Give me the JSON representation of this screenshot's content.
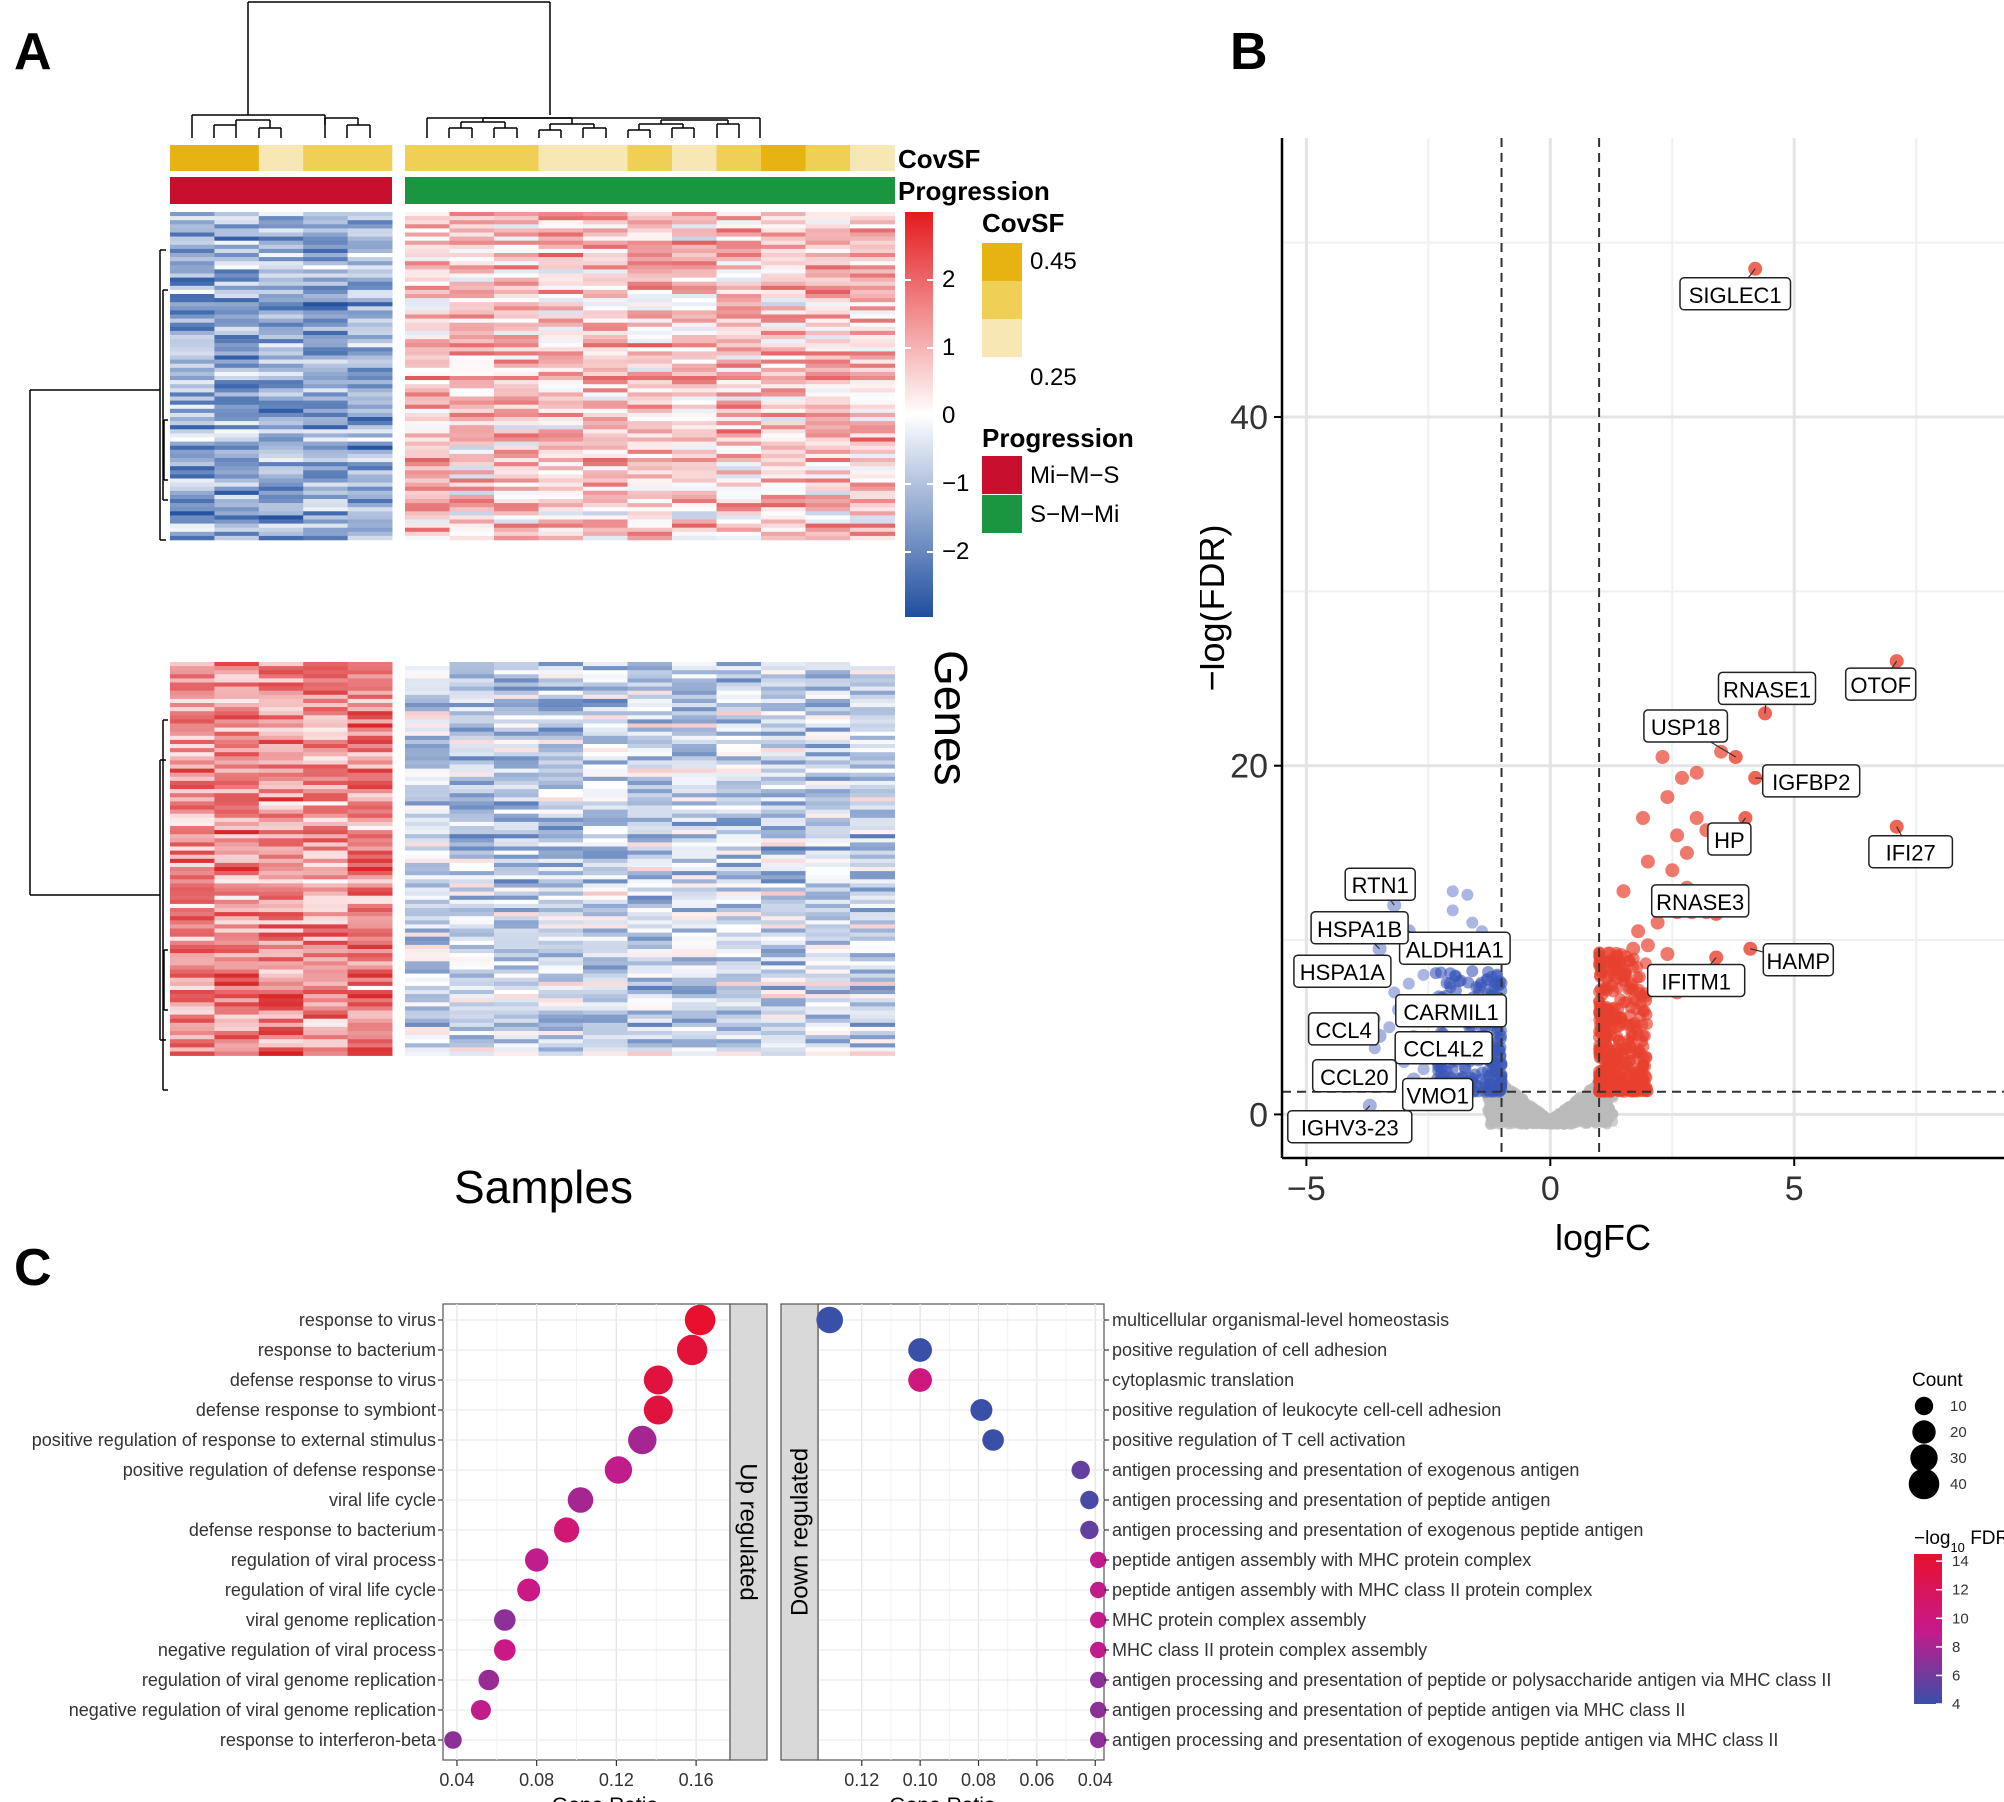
{
  "panels": {
    "a": "A",
    "b": "B",
    "c": "C"
  },
  "heatmap": {
    "x_label": "Samples",
    "y_label": "Genes",
    "annotation_rows": [
      "CovSF",
      "Progression"
    ],
    "color_scale_ticks": [
      "2",
      "1",
      "0",
      "−1",
      "−2"
    ],
    "covsf_legend": {
      "title": "CovSF",
      "high": "0.45",
      "low": "0.25"
    },
    "progression_legend": {
      "title": "Progression",
      "items": [
        {
          "label": "Mi−M−S",
          "color": "#c8102e"
        },
        {
          "label": "S−M−Mi",
          "color": "#1a9641"
        }
      ]
    },
    "colors": {
      "high": "#d7191c",
      "mid": "#ffffff",
      "low": "#1f4e9f",
      "covsf_high": "#e6b312",
      "covsf_low": "#f6e7b4"
    }
  },
  "chart_data": [
    {
      "type": "scatter",
      "panel": "B",
      "title": "",
      "xlabel": "logFC",
      "ylabel": "−log(FDR)",
      "xlim": [
        -5.5,
        9.3
      ],
      "ylim": [
        -2.5,
        56
      ],
      "x_ticks": [
        -5,
        0,
        5
      ],
      "x_tick_labels": [
        "−5",
        "0",
        "5"
      ],
      "y_ticks": [
        0,
        20,
        40
      ],
      "y_tick_labels": [
        "0",
        "20",
        "40"
      ],
      "thresholds": {
        "logFC": [
          -1,
          1
        ],
        "neg_log_fdr": 1.3
      },
      "colors": {
        "up": "#e8402e",
        "down": "#3a57b8",
        "ns": "#bbbbbb"
      },
      "labeled_genes": [
        {
          "gene": "SIGLEC1",
          "x": 4.2,
          "y": 48.5,
          "dir": "up"
        },
        {
          "gene": "OTOF",
          "x": 7.1,
          "y": 26.0,
          "dir": "up"
        },
        {
          "gene": "RNASE1",
          "x": 4.4,
          "y": 23.0,
          "dir": "up"
        },
        {
          "gene": "USP18",
          "x": 3.8,
          "y": 20.5,
          "dir": "up"
        },
        {
          "gene": "IGFBP2",
          "x": 4.2,
          "y": 19.3,
          "dir": "up"
        },
        {
          "gene": "HP",
          "x": 4.0,
          "y": 17.0,
          "dir": "up"
        },
        {
          "gene": "IFI27",
          "x": 7.1,
          "y": 16.5,
          "dir": "up"
        },
        {
          "gene": "RNASE3",
          "x": 3.4,
          "y": 11.5,
          "dir": "up"
        },
        {
          "gene": "HAMP",
          "x": 4.1,
          "y": 9.5,
          "dir": "up"
        },
        {
          "gene": "IFITM1",
          "x": 3.4,
          "y": 9.0,
          "dir": "up"
        },
        {
          "gene": "RTN1",
          "x": -3.2,
          "y": 12.0,
          "dir": "down"
        },
        {
          "gene": "ALDH1A1",
          "x": -2.9,
          "y": 10.5,
          "dir": "down"
        },
        {
          "gene": "HSPA1B",
          "x": -3.5,
          "y": 9.5,
          "dir": "down"
        },
        {
          "gene": "HSPA1A",
          "x": -3.4,
          "y": 8.5,
          "dir": "down"
        },
        {
          "gene": "CARMIL1",
          "x": -3.1,
          "y": 6.0,
          "dir": "down"
        },
        {
          "gene": "CCL4",
          "x": -3.5,
          "y": 4.5,
          "dir": "down"
        },
        {
          "gene": "CCL4L2",
          "x": -2.8,
          "y": 4.0,
          "dir": "down"
        },
        {
          "gene": "CCL20",
          "x": -3.4,
          "y": 2.5,
          "dir": "down"
        },
        {
          "gene": "VMO1",
          "x": -2.8,
          "y": 2.0,
          "dir": "down"
        },
        {
          "gene": "IGHV3-23",
          "x": -3.7,
          "y": 0.5,
          "dir": "down"
        }
      ]
    },
    {
      "type": "scatter",
      "panel": "C-left",
      "facet": "Up regulated",
      "xlabel": "Gene Ratio",
      "xlim": [
        0.033,
        0.177
      ],
      "x_ticks": [
        0.04,
        0.08,
        0.12,
        0.16
      ],
      "x_tick_labels": [
        "0.04",
        "0.08",
        "0.12",
        "0.16"
      ],
      "points": [
        {
          "term": "response to virus",
          "ratio": 0.162,
          "count": 40,
          "fdr": 14.5
        },
        {
          "term": "response to bacterium",
          "ratio": 0.158,
          "count": 39,
          "fdr": 13.8
        },
        {
          "term": "defense response to virus",
          "ratio": 0.141,
          "count": 35,
          "fdr": 13.5
        },
        {
          "term": "defense response to symbiont",
          "ratio": 0.141,
          "count": 35,
          "fdr": 13.5
        },
        {
          "term": "positive regulation of response to external stimulus",
          "ratio": 0.133,
          "count": 33,
          "fdr": 8.0
        },
        {
          "term": "positive regulation of defense response",
          "ratio": 0.121,
          "count": 30,
          "fdr": 9.0
        },
        {
          "term": "viral life cycle",
          "ratio": 0.102,
          "count": 25,
          "fdr": 8.0
        },
        {
          "term": "defense response to bacterium",
          "ratio": 0.095,
          "count": 24,
          "fdr": 10.5
        },
        {
          "term": "regulation of viral process",
          "ratio": 0.08,
          "count": 20,
          "fdr": 9.0
        },
        {
          "term": "regulation of viral life cycle",
          "ratio": 0.076,
          "count": 19,
          "fdr": 9.5
        },
        {
          "term": "viral genome replication",
          "ratio": 0.064,
          "count": 16,
          "fdr": 7.0
        },
        {
          "term": "negative regulation of viral process",
          "ratio": 0.064,
          "count": 16,
          "fdr": 9.5
        },
        {
          "term": "regulation of viral genome replication",
          "ratio": 0.056,
          "count": 14,
          "fdr": 7.5
        },
        {
          "term": "negative regulation of viral genome replication",
          "ratio": 0.052,
          "count": 13,
          "fdr": 9.0
        },
        {
          "term": "response to interferon-beta",
          "ratio": 0.038,
          "count": 9,
          "fdr": 7.0
        }
      ]
    },
    {
      "type": "scatter",
      "panel": "C-right",
      "facet": "Down regulated",
      "xlabel": "Gene Ratio",
      "xlim": [
        0.037,
        0.135
      ],
      "x_reversed": true,
      "x_ticks": [
        0.12,
        0.1,
        0.08,
        0.06,
        0.04
      ],
      "x_tick_labels": [
        "0.12",
        "0.10",
        "0.08",
        "0.06",
        "0.04"
      ],
      "points": [
        {
          "term": "multicellular organismal-level homeostasis",
          "ratio": 0.131,
          "count": 28,
          "fdr": 4.0
        },
        {
          "term": "positive regulation of cell adhesion",
          "ratio": 0.1,
          "count": 21,
          "fdr": 4.0
        },
        {
          "term": "cytoplasmic translation",
          "ratio": 0.1,
          "count": 21,
          "fdr": 10.0
        },
        {
          "term": "positive regulation of leukocyte cell-cell adhesion",
          "ratio": 0.079,
          "count": 17,
          "fdr": 4.0
        },
        {
          "term": "positive regulation of T cell activation",
          "ratio": 0.075,
          "count": 16,
          "fdr": 4.0
        },
        {
          "term": "antigen processing and presentation of exogenous antigen",
          "ratio": 0.045,
          "count": 10,
          "fdr": 5.5
        },
        {
          "term": "antigen processing and presentation of peptide antigen",
          "ratio": 0.042,
          "count": 10,
          "fdr": 4.5
        },
        {
          "term": "antigen processing and presentation of exogenous peptide antigen",
          "ratio": 0.042,
          "count": 10,
          "fdr": 5.5
        },
        {
          "term": "peptide antigen assembly with MHC protein complex",
          "ratio": 0.039,
          "count": 7,
          "fdr": 9.0
        },
        {
          "term": "peptide antigen assembly with MHC class II protein complex",
          "ratio": 0.039,
          "count": 7,
          "fdr": 9.0
        },
        {
          "term": "MHC protein complex assembly",
          "ratio": 0.039,
          "count": 7,
          "fdr": 9.0
        },
        {
          "term": "MHC class II protein complex assembly",
          "ratio": 0.039,
          "count": 7,
          "fdr": 9.0
        },
        {
          "term": "antigen processing and presentation of peptide or polysaccharide antigen via MHC class II",
          "ratio": 0.039,
          "count": 7,
          "fdr": 7.0
        },
        {
          "term": "antigen processing and presentation of peptide antigen via MHC class II",
          "ratio": 0.039,
          "count": 7,
          "fdr": 7.0
        },
        {
          "term": "antigen processing and presentation of exogenous peptide antigen via MHC class II",
          "ratio": 0.039,
          "count": 7,
          "fdr": 7.0
        }
      ]
    }
  ],
  "dotplot_legend": {
    "count_title": "Count",
    "count_values": [
      10,
      20,
      30,
      40
    ],
    "count_labels": [
      "10",
      "20",
      "30",
      "40"
    ],
    "fdr_title_prefix": "−log",
    "fdr_title_sub": "10",
    "fdr_title_suffix": " FDR",
    "fdr_ticks": [
      14,
      12,
      10,
      8,
      6,
      4
    ],
    "fdr_tick_labels": [
      "14",
      "12",
      "10",
      "8",
      "6",
      "4"
    ],
    "fdr_colors": {
      "high": "#e8102e",
      "mid": "#c8198a",
      "low": "#3a4fa8"
    }
  }
}
